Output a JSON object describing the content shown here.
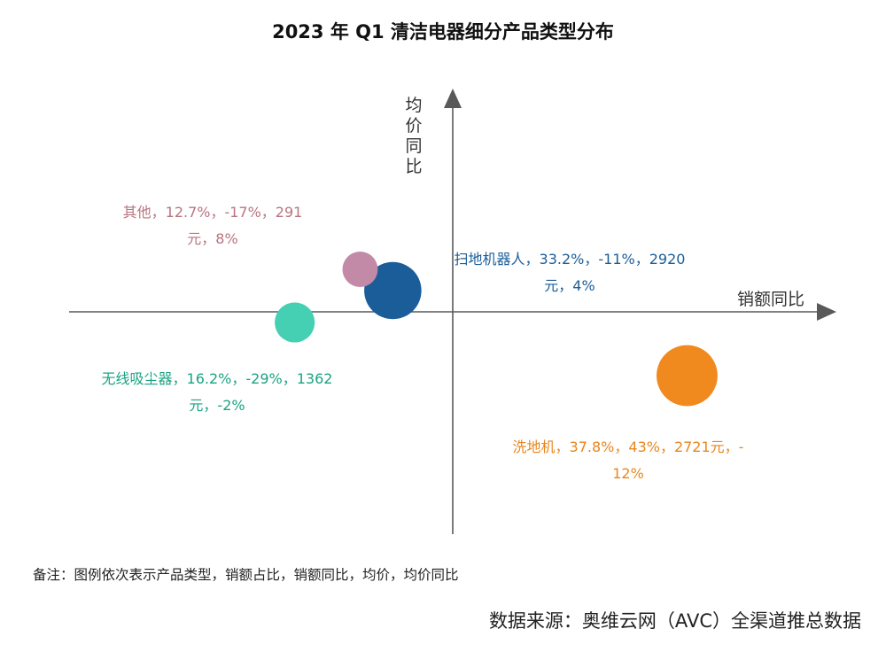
{
  "chart_data": {
    "type": "scatter",
    "subtype": "bubble",
    "title": "2023 年 Q1 清洁电器细分产品类型分布",
    "xlabel": "销额同比",
    "ylabel": "均价同比",
    "xlim": [
      -69,
      69
    ],
    "ylim": [
      -42,
      42
    ],
    "grid": false,
    "points": [
      {
        "name": "其他",
        "share": 12.7,
        "x": -17,
        "price": 291,
        "y": 8,
        "color": "#C28AA6",
        "label_color": "#B87480",
        "label_lines": [
          "其他，12.7%，-17%，291",
          "元，8%"
        ]
      },
      {
        "name": "扫地机器人",
        "share": 33.2,
        "x": -11,
        "price": 2920,
        "y": 4,
        "color": "#1A5D99",
        "label_color": "#1A5D99",
        "label_lines": [
          "扫地机器人，33.2%，-11%，2920",
          "元，4%"
        ]
      },
      {
        "name": "无线吸尘器",
        "share": 16.2,
        "x": -29,
        "price": 1362,
        "y": -2,
        "color": "#45D0B3",
        "label_color": "#1BA383",
        "label_lines": [
          "无线吸尘器，16.2%，-29%，1362",
          "元，-2%"
        ]
      },
      {
        "name": "洗地机",
        "share": 37.8,
        "x": 43,
        "price": 2721,
        "y": -12,
        "color": "#F08A1E",
        "label_color": "#E8861E",
        "label_lines": [
          "洗地机，37.8%，43%，2721元，-",
          "12%"
        ]
      }
    ]
  },
  "note": "备注：图例依次表示产品类型，销额占比，销额同比，均价，均价同比",
  "source": "数据来源：奥维云网（AVC）全渠道推总数据"
}
